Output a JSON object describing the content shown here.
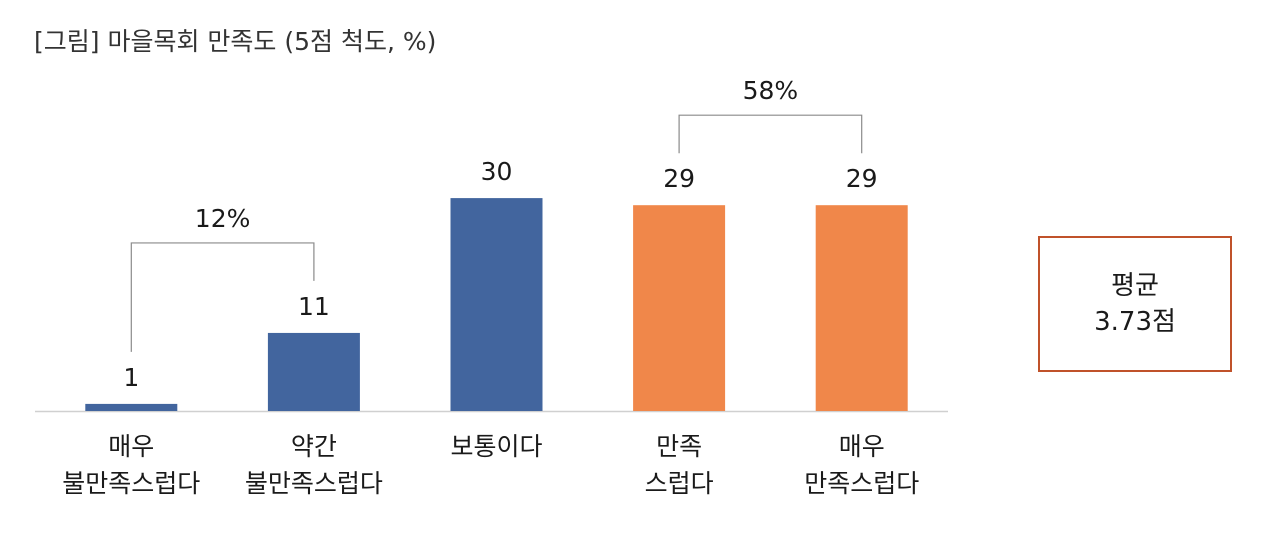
{
  "title": "[그림] 마을목회 만족도 (5점 척도, %)",
  "chart_data": {
    "type": "bar",
    "title": "[그림] 마을목회 만족도 (5점 척도, %)",
    "categories": [
      [
        "매우",
        "불만족스럽다"
      ],
      [
        "약간",
        "불만족스럽다"
      ],
      [
        "보통이다"
      ],
      [
        "만족",
        "스럽다"
      ],
      [
        "매우",
        "만족스럽다"
      ]
    ],
    "values": [
      1,
      11,
      30,
      29,
      29
    ],
    "value_labels": [
      "1",
      "11",
      "30",
      "29",
      "29"
    ],
    "bar_colors": [
      "#42659e",
      "#42659e",
      "#42659e",
      "#f0874a",
      "#f0874a"
    ],
    "ylim": [
      0,
      31
    ],
    "grid": false,
    "brackets": [
      {
        "label": "12%",
        "from": 0,
        "to": 1
      },
      {
        "label": "58%",
        "from": 3,
        "to": 4
      }
    ]
  },
  "average": {
    "label": "평균",
    "value": "3.73점",
    "border_color": "#c0522a"
  }
}
